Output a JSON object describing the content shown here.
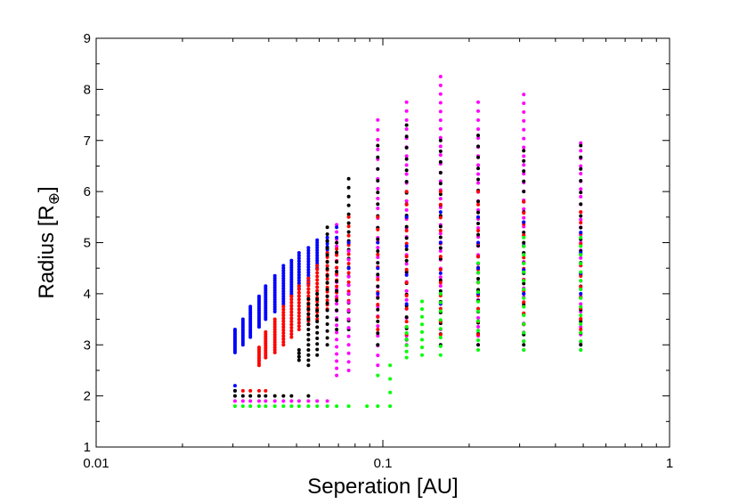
{
  "chart_data": {
    "type": "scatter",
    "title": "",
    "xlabel": "Seperation [AU]",
    "ylabel_main": "Radius [R",
    "ylabel_sub": "⊕",
    "ylabel_close": "]",
    "xscale": "log",
    "xlim": [
      0.01,
      1
    ],
    "ylim": [
      1,
      9
    ],
    "xticks": [
      0.01,
      0.1,
      1
    ],
    "xtick_labels": [
      "0.01",
      "0.1",
      "1"
    ],
    "yticks": [
      1,
      2,
      3,
      4,
      5,
      6,
      7,
      8,
      9
    ],
    "ytick_labels": [
      "1",
      "2",
      "3",
      "4",
      "5",
      "6",
      "7",
      "8",
      "9"
    ],
    "grid": false,
    "legend": "none",
    "colors": {
      "blue": "#0000ff",
      "red": "#ff0000",
      "black": "#000000",
      "magenta": "#ff00ff",
      "green": "#00ff00",
      "axis": "#000000"
    },
    "columns": [
      {
        "x": 0.0305,
        "groups": [
          {
            "color": "blue",
            "y_min": 2.85,
            "y_max": 3.3,
            "n": 14
          },
          {
            "color": "blue",
            "y_min": 2.1,
            "y_max": 2.2,
            "n": 2
          },
          {
            "color": "black",
            "y_min": 2.0,
            "y_max": 2.1,
            "n": 2
          },
          {
            "color": "magenta",
            "y_min": 1.9,
            "y_max": 1.9,
            "n": 1
          },
          {
            "color": "green",
            "y_min": 1.8,
            "y_max": 1.8,
            "n": 1
          }
        ]
      },
      {
        "x": 0.0325,
        "groups": [
          {
            "color": "blue",
            "y_min": 3.0,
            "y_max": 3.5,
            "n": 14
          },
          {
            "color": "red",
            "y_min": 2.1,
            "y_max": 2.1,
            "n": 1
          },
          {
            "color": "black",
            "y_min": 2.0,
            "y_max": 2.0,
            "n": 1
          },
          {
            "color": "magenta",
            "y_min": 1.9,
            "y_max": 1.9,
            "n": 1
          },
          {
            "color": "green",
            "y_min": 1.8,
            "y_max": 1.8,
            "n": 1
          }
        ]
      },
      {
        "x": 0.0345,
        "groups": [
          {
            "color": "blue",
            "y_min": 3.15,
            "y_max": 3.75,
            "n": 16
          },
          {
            "color": "red",
            "y_min": 2.1,
            "y_max": 2.1,
            "n": 1
          },
          {
            "color": "black",
            "y_min": 2.0,
            "y_max": 2.0,
            "n": 1
          },
          {
            "color": "magenta",
            "y_min": 1.9,
            "y_max": 1.9,
            "n": 1
          },
          {
            "color": "green",
            "y_min": 1.8,
            "y_max": 1.8,
            "n": 1
          }
        ]
      },
      {
        "x": 0.037,
        "groups": [
          {
            "color": "blue",
            "y_min": 3.35,
            "y_max": 3.95,
            "n": 16
          },
          {
            "color": "red",
            "y_min": 2.6,
            "y_max": 2.95,
            "n": 9
          },
          {
            "color": "red",
            "y_min": 2.1,
            "y_max": 2.1,
            "n": 1
          },
          {
            "color": "black",
            "y_min": 2.0,
            "y_max": 2.0,
            "n": 1
          },
          {
            "color": "magenta",
            "y_min": 1.9,
            "y_max": 1.9,
            "n": 1
          },
          {
            "color": "green",
            "y_min": 1.8,
            "y_max": 1.8,
            "n": 1
          }
        ]
      },
      {
        "x": 0.039,
        "groups": [
          {
            "color": "blue",
            "y_min": 3.5,
            "y_max": 4.15,
            "n": 16
          },
          {
            "color": "red",
            "y_min": 2.75,
            "y_max": 3.25,
            "n": 12
          },
          {
            "color": "red",
            "y_min": 2.1,
            "y_max": 2.1,
            "n": 1
          },
          {
            "color": "black",
            "y_min": 2.0,
            "y_max": 2.0,
            "n": 1
          },
          {
            "color": "magenta",
            "y_min": 1.9,
            "y_max": 1.9,
            "n": 1
          },
          {
            "color": "green",
            "y_min": 1.8,
            "y_max": 1.8,
            "n": 1
          }
        ]
      },
      {
        "x": 0.042,
        "groups": [
          {
            "color": "blue",
            "y_min": 3.65,
            "y_max": 4.35,
            "n": 16
          },
          {
            "color": "red",
            "y_min": 2.85,
            "y_max": 3.5,
            "n": 14
          },
          {
            "color": "black",
            "y_min": 2.0,
            "y_max": 2.0,
            "n": 1
          },
          {
            "color": "magenta",
            "y_min": 1.9,
            "y_max": 1.9,
            "n": 1
          },
          {
            "color": "green",
            "y_min": 1.8,
            "y_max": 1.8,
            "n": 1
          }
        ]
      },
      {
        "x": 0.045,
        "groups": [
          {
            "color": "blue",
            "y_min": 3.8,
            "y_max": 4.55,
            "n": 16
          },
          {
            "color": "red",
            "y_min": 3.0,
            "y_max": 3.75,
            "n": 14
          },
          {
            "color": "black",
            "y_min": 2.0,
            "y_max": 2.0,
            "n": 1
          },
          {
            "color": "magenta",
            "y_min": 1.9,
            "y_max": 1.9,
            "n": 1
          },
          {
            "color": "green",
            "y_min": 1.8,
            "y_max": 1.8,
            "n": 1
          }
        ]
      },
      {
        "x": 0.048,
        "groups": [
          {
            "color": "blue",
            "y_min": 3.95,
            "y_max": 4.65,
            "n": 16
          },
          {
            "color": "red",
            "y_min": 3.15,
            "y_max": 3.95,
            "n": 14
          },
          {
            "color": "black",
            "y_min": 2.0,
            "y_max": 2.0,
            "n": 1
          },
          {
            "color": "magenta",
            "y_min": 1.9,
            "y_max": 1.9,
            "n": 1
          },
          {
            "color": "green",
            "y_min": 1.8,
            "y_max": 1.8,
            "n": 1
          }
        ]
      },
      {
        "x": 0.051,
        "groups": [
          {
            "color": "blue",
            "y_min": 4.1,
            "y_max": 4.8,
            "n": 14
          },
          {
            "color": "red",
            "y_min": 3.3,
            "y_max": 4.15,
            "n": 14
          },
          {
            "color": "black",
            "y_min": 2.7,
            "y_max": 2.9,
            "n": 4
          },
          {
            "color": "magenta",
            "y_min": 1.9,
            "y_max": 1.9,
            "n": 1
          },
          {
            "color": "green",
            "y_min": 1.8,
            "y_max": 1.8,
            "n": 1
          }
        ]
      },
      {
        "x": 0.055,
        "groups": [
          {
            "color": "blue",
            "y_min": 4.2,
            "y_max": 4.9,
            "n": 14
          },
          {
            "color": "red",
            "y_min": 3.4,
            "y_max": 4.3,
            "n": 14
          },
          {
            "color": "black",
            "y_min": 2.6,
            "y_max": 3.9,
            "n": 14
          },
          {
            "color": "black",
            "y_min": 2.0,
            "y_max": 2.0,
            "n": 1
          },
          {
            "color": "magenta",
            "y_min": 1.9,
            "y_max": 1.9,
            "n": 1
          },
          {
            "color": "green",
            "y_min": 1.8,
            "y_max": 1.8,
            "n": 1
          }
        ]
      },
      {
        "x": 0.059,
        "groups": [
          {
            "color": "blue",
            "y_min": 4.5,
            "y_max": 5.05,
            "n": 12
          },
          {
            "color": "red",
            "y_min": 3.5,
            "y_max": 4.55,
            "n": 16
          },
          {
            "color": "black",
            "y_min": 2.8,
            "y_max": 4.0,
            "n": 12
          },
          {
            "color": "magenta",
            "y_min": 1.9,
            "y_max": 1.9,
            "n": 1
          },
          {
            "color": "green",
            "y_min": 1.8,
            "y_max": 1.8,
            "n": 1
          }
        ]
      },
      {
        "x": 0.064,
        "groups": [
          {
            "color": "blue",
            "y_min": 4.8,
            "y_max": 5.1,
            "n": 6
          },
          {
            "color": "red",
            "y_min": 3.7,
            "y_max": 4.8,
            "n": 14
          },
          {
            "color": "black",
            "y_min": 3.0,
            "y_max": 5.3,
            "n": 18
          },
          {
            "color": "magenta",
            "y_min": 1.9,
            "y_max": 1.9,
            "n": 1
          },
          {
            "color": "green",
            "y_min": 1.8,
            "y_max": 1.8,
            "n": 1
          }
        ]
      },
      {
        "x": 0.069,
        "groups": [
          {
            "color": "magenta",
            "y_min": 2.4,
            "y_max": 5.35,
            "n": 22
          },
          {
            "color": "red",
            "y_min": 3.9,
            "y_max": 5.0,
            "n": 10
          },
          {
            "color": "black",
            "y_min": 3.3,
            "y_max": 5.0,
            "n": 10
          },
          {
            "color": "blue",
            "y_min": 5.1,
            "y_max": 5.3,
            "n": 2
          },
          {
            "color": "green",
            "y_min": 1.8,
            "y_max": 1.8,
            "n": 1
          }
        ]
      },
      {
        "x": 0.076,
        "groups": [
          {
            "color": "black",
            "y_min": 3.3,
            "y_max": 6.25,
            "n": 18
          },
          {
            "color": "red",
            "y_min": 3.5,
            "y_max": 5.5,
            "n": 12
          },
          {
            "color": "magenta",
            "y_min": 2.5,
            "y_max": 5.0,
            "n": 16
          },
          {
            "color": "blue",
            "y_min": 4.5,
            "y_max": 5.0,
            "n": 2
          },
          {
            "color": "green",
            "y_min": 1.8,
            "y_max": 1.8,
            "n": 1
          }
        ]
      },
      {
        "x": 0.088,
        "groups": [
          {
            "color": "green",
            "y_min": 1.8,
            "y_max": 1.8,
            "n": 1
          }
        ]
      },
      {
        "x": 0.096,
        "groups": [
          {
            "color": "magenta",
            "y_min": 2.6,
            "y_max": 7.4,
            "n": 26
          },
          {
            "color": "black",
            "y_min": 3.0,
            "y_max": 6.9,
            "n": 18
          },
          {
            "color": "red",
            "y_min": 3.3,
            "y_max": 5.5,
            "n": 10
          },
          {
            "color": "blue",
            "y_min": 4.0,
            "y_max": 5.0,
            "n": 3
          },
          {
            "color": "green",
            "y_min": 1.8,
            "y_max": 2.4,
            "n": 2
          }
        ]
      },
      {
        "x": 0.106,
        "groups": [
          {
            "color": "green",
            "y_min": 1.8,
            "y_max": 2.6,
            "n": 4
          }
        ]
      },
      {
        "x": 0.121,
        "groups": [
          {
            "color": "magenta",
            "y_min": 3.0,
            "y_max": 7.75,
            "n": 28
          },
          {
            "color": "black",
            "y_min": 3.1,
            "y_max": 7.3,
            "n": 20
          },
          {
            "color": "red",
            "y_min": 3.2,
            "y_max": 6.0,
            "n": 12
          },
          {
            "color": "blue",
            "y_min": 3.8,
            "y_max": 5.5,
            "n": 4
          },
          {
            "color": "green",
            "y_min": 2.75,
            "y_max": 3.35,
            "n": 6
          }
        ]
      },
      {
        "x": 0.137,
        "groups": [
          {
            "color": "green",
            "y_min": 2.8,
            "y_max": 3.85,
            "n": 8
          }
        ]
      },
      {
        "x": 0.159,
        "groups": [
          {
            "color": "magenta",
            "y_min": 3.3,
            "y_max": 8.25,
            "n": 30
          },
          {
            "color": "black",
            "y_min": 3.0,
            "y_max": 7.0,
            "n": 20
          },
          {
            "color": "red",
            "y_min": 3.2,
            "y_max": 6.0,
            "n": 12
          },
          {
            "color": "blue",
            "y_min": 3.8,
            "y_max": 5.6,
            "n": 4
          },
          {
            "color": "green",
            "y_min": 2.8,
            "y_max": 4.0,
            "n": 8
          }
        ]
      },
      {
        "x": 0.215,
        "groups": [
          {
            "color": "magenta",
            "y_min": 3.0,
            "y_max": 7.75,
            "n": 28
          },
          {
            "color": "black",
            "y_min": 3.0,
            "y_max": 7.1,
            "n": 20
          },
          {
            "color": "red",
            "y_min": 3.2,
            "y_max": 6.0,
            "n": 12
          },
          {
            "color": "blue",
            "y_min": 4.0,
            "y_max": 5.5,
            "n": 4
          },
          {
            "color": "green",
            "y_min": 2.9,
            "y_max": 4.6,
            "n": 10
          }
        ]
      },
      {
        "x": 0.31,
        "groups": [
          {
            "color": "magenta",
            "y_min": 2.9,
            "y_max": 7.9,
            "n": 30
          },
          {
            "color": "black",
            "y_min": 3.0,
            "y_max": 6.8,
            "n": 20
          },
          {
            "color": "red",
            "y_min": 3.4,
            "y_max": 5.8,
            "n": 12
          },
          {
            "color": "blue",
            "y_min": 4.0,
            "y_max": 5.4,
            "n": 4
          },
          {
            "color": "green",
            "y_min": 2.9,
            "y_max": 5.1,
            "n": 14
          }
        ]
      },
      {
        "x": 0.49,
        "groups": [
          {
            "color": "magenta",
            "y_min": 2.9,
            "y_max": 6.95,
            "n": 28
          },
          {
            "color": "black",
            "y_min": 3.0,
            "y_max": 6.9,
            "n": 18
          },
          {
            "color": "red",
            "y_min": 3.3,
            "y_max": 5.6,
            "n": 12
          },
          {
            "color": "blue",
            "y_min": 4.0,
            "y_max": 5.2,
            "n": 4
          },
          {
            "color": "green",
            "y_min": 2.9,
            "y_max": 5.1,
            "n": 14
          }
        ]
      }
    ]
  }
}
